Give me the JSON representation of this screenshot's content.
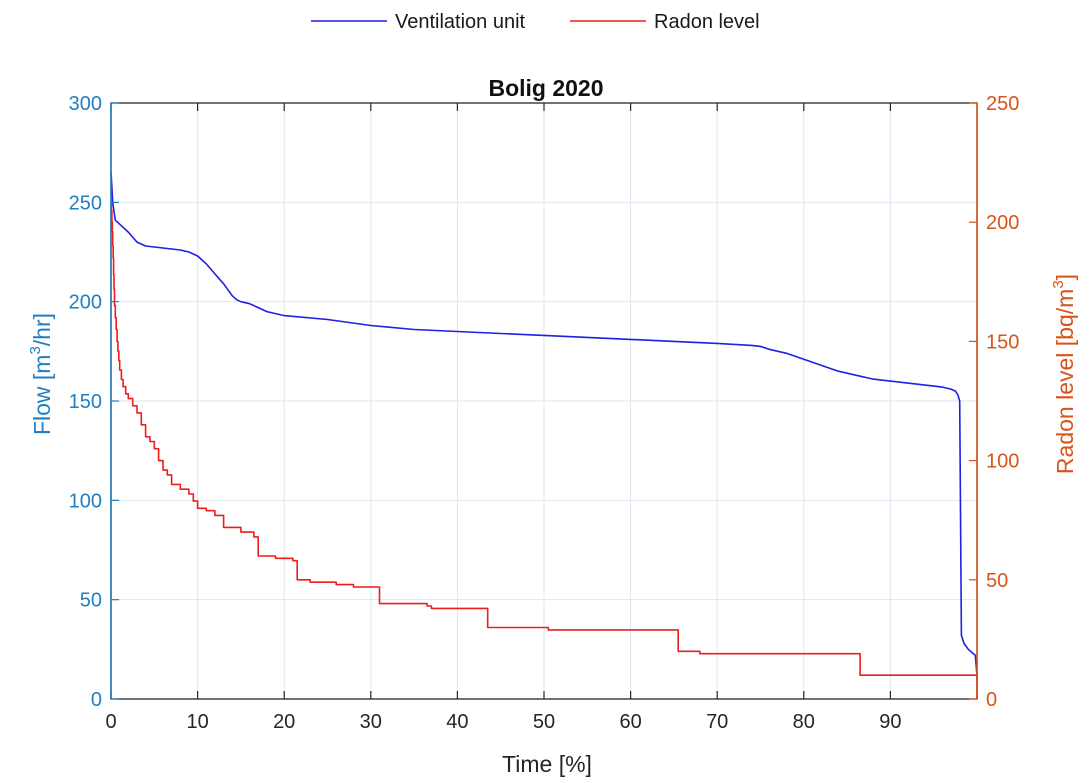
{
  "chart_data": {
    "type": "line",
    "title": "Bolig 2020",
    "xlabel": "Time [%]",
    "ylabel_left": {
      "pre": "Flow [m",
      "sup": "3",
      "post": "/hr]"
    },
    "ylabel_right": {
      "pre": "Radon level [bq/m",
      "sup": "3",
      "post": "]"
    },
    "xlim": [
      0,
      100
    ],
    "ylim_left": [
      0,
      300
    ],
    "ylim_right": [
      0,
      250
    ],
    "x_ticks": [
      0,
      10,
      20,
      30,
      40,
      50,
      60,
      70,
      80,
      90
    ],
    "y_left_ticks": [
      0,
      50,
      100,
      150,
      200,
      250,
      300
    ],
    "y_right_ticks": [
      0,
      50,
      100,
      150,
      200,
      250
    ],
    "grid": true,
    "legend_position": "top-center",
    "colors": {
      "left_axis": "#1f7fc0",
      "right_axis": "#d95319",
      "ventilation": "#1f1fe6",
      "radon": "#ee1c1c",
      "grid": "#dfe6ee",
      "box": "#262626"
    },
    "series": [
      {
        "name": "Ventilation unit",
        "axis": "left",
        "line_type": "line",
        "x": [
          0,
          0.05,
          0.2,
          0.5,
          1,
          2,
          3,
          4,
          6,
          8,
          9,
          10,
          11,
          12,
          13,
          14,
          14.5,
          15,
          16,
          17,
          18,
          20,
          25,
          30,
          35,
          40,
          45,
          50,
          55,
          60,
          65,
          70,
          72,
          74,
          75,
          76,
          78,
          80,
          82,
          84,
          86,
          88,
          90,
          92,
          94,
          95,
          96,
          97,
          97.5,
          97.8,
          98,
          98.2,
          98.5,
          99,
          99.5,
          99.8,
          100
        ],
        "y": [
          265,
          262,
          250,
          241,
          239,
          235,
          230,
          228,
          227,
          226,
          225,
          223,
          219,
          214,
          209,
          203,
          201,
          200,
          199,
          197,
          195,
          193,
          191,
          188,
          186,
          185,
          184,
          183,
          182,
          181,
          180,
          179,
          178.5,
          178,
          177.5,
          176,
          174,
          171,
          168,
          165,
          163,
          161,
          160,
          159,
          158,
          157.5,
          157,
          156,
          155,
          153,
          150,
          32,
          28,
          25,
          23,
          22,
          12
        ]
      },
      {
        "name": "Radon level",
        "axis": "right",
        "line_type": "step",
        "x": [
          0,
          0.05,
          0.1,
          0.15,
          0.2,
          0.25,
          0.3,
          0.35,
          0.4,
          0.5,
          0.6,
          0.7,
          0.8,
          0.9,
          1.0,
          1.2,
          1.4,
          1.7,
          2,
          2.5,
          3,
          3.5,
          4,
          4.5,
          5,
          5.5,
          6,
          6.5,
          7,
          8,
          9,
          9.5,
          10,
          11,
          12,
          13,
          15,
          16.5,
          17,
          19,
          21,
          21.5,
          23,
          26,
          28,
          31,
          36.5,
          37,
          43.5,
          50.5,
          65.5,
          68,
          86.5,
          100
        ],
        "y": [
          208,
          205,
          200,
          196,
          190,
          185,
          178,
          172,
          165,
          160,
          155,
          150,
          146,
          142,
          138,
          134,
          131,
          128,
          126,
          123,
          120,
          115,
          110,
          108,
          105,
          100,
          96,
          94,
          90,
          88,
          86,
          83,
          80,
          79,
          77,
          72,
          70,
          68,
          60,
          59,
          58,
          50,
          49,
          48,
          47,
          40,
          39,
          38,
          30,
          29,
          20,
          19,
          10,
          0
        ]
      }
    ]
  }
}
